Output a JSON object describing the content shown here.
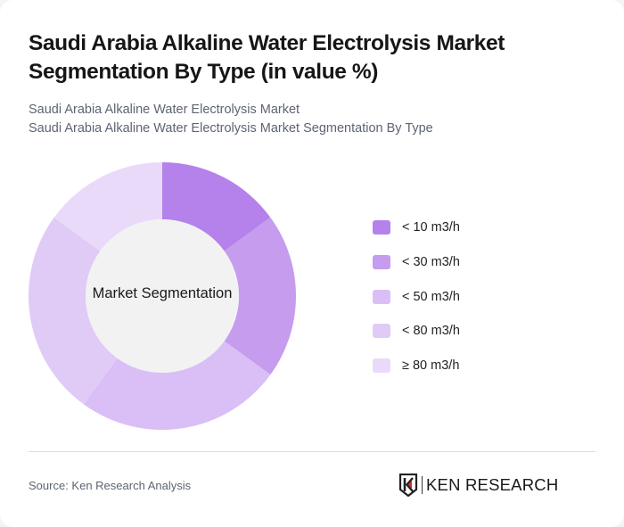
{
  "header": {
    "title": "Saudi Arabia Alkaline Water Electrolysis Market Segmentation By Type (in value %)",
    "subtitle_line1": "Saudi Arabia Alkaline Water Electrolysis Market",
    "subtitle_line2": "Saudi Arabia Alkaline Water Electrolysis Market Segmentation By Type"
  },
  "chart": {
    "center_label": "Market Segmentation"
  },
  "legend": [
    {
      "label": "< 10 m3/h",
      "color": "#b482ea"
    },
    {
      "label": "< 30 m3/h",
      "color": "#c59cee"
    },
    {
      "label": "< 50 m3/h",
      "color": "#d9bff6"
    },
    {
      "label": "< 80 m3/h",
      "color": "#e0cbf7"
    },
    {
      "label": "≥ 80 m3/h",
      "color": "#e9dafa"
    }
  ],
  "footer": {
    "source": "Source: Ken Research Analysis",
    "logo_text": "KEN RESEARCH"
  },
  "chart_data": {
    "type": "pie",
    "variant": "donut",
    "title": "Saudi Arabia Alkaline Water Electrolysis Market Segmentation By Type (in value %)",
    "subtitle": "Saudi Arabia Alkaline Water Electrolysis Market Segmentation By Type",
    "center_label": "Market Segmentation",
    "categories": [
      "< 10 m3/h",
      "< 30 m3/h",
      "< 50 m3/h",
      "< 80 m3/h",
      "≥ 80 m3/h"
    ],
    "values": [
      15,
      20,
      25,
      25,
      15
    ],
    "colors": [
      "#b482ea",
      "#c59cee",
      "#d9bff6",
      "#e0cbf7",
      "#e9dafa"
    ],
    "unit": "%",
    "legend_position": "right",
    "start_angle": "top, clockwise"
  }
}
